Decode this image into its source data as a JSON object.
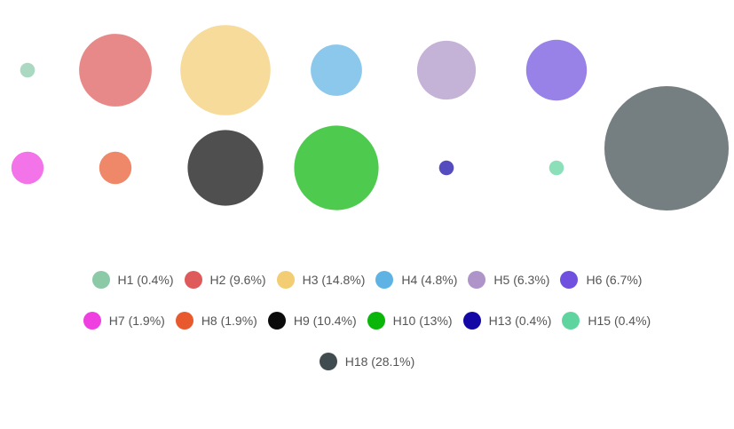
{
  "chart_data": {
    "type": "bubble",
    "unit": "%",
    "series": [
      {
        "name": "H1",
        "value": 0.4,
        "color": "#8bc9a7"
      },
      {
        "name": "H2",
        "value": 9.6,
        "color": "#df5b5b"
      },
      {
        "name": "H3",
        "value": 14.8,
        "color": "#f2cd73"
      },
      {
        "name": "H4",
        "value": 4.8,
        "color": "#5eb3e4"
      },
      {
        "name": "H5",
        "value": 6.3,
        "color": "#ae94c8"
      },
      {
        "name": "H6",
        "value": 6.7,
        "color": "#7050de"
      },
      {
        "name": "H7",
        "value": 1.9,
        "color": "#ef3fe0"
      },
      {
        "name": "H8",
        "value": 1.9,
        "color": "#e85a2e"
      },
      {
        "name": "H9",
        "value": 10.4,
        "color": "#0b0b0b"
      },
      {
        "name": "H10",
        "value": 13,
        "color": "#0ab60a"
      },
      {
        "name": "H13",
        "value": 0.4,
        "color": "#1308a6"
      },
      {
        "name": "H15",
        "value": 0.4,
        "color": "#5fd49e"
      },
      {
        "name": "H18",
        "value": 28.1,
        "color": "#404c50"
      }
    ],
    "legend": {
      "position": "bottom",
      "items": [
        [
          "H1 (0.4%)",
          "H2 (9.6%)",
          "H3 (14.8%)",
          "H4 (4.8%)",
          "H5 (6.3%)",
          "H6 (6.7%)"
        ],
        [
          "H7 (1.9%)",
          "H8 (1.9%)",
          "H9 (10.4%)",
          "H10 (13%)",
          "H13 (0.4%)",
          "H15 (0.4%)"
        ],
        [
          "H18 (28.1%)"
        ]
      ]
    }
  }
}
